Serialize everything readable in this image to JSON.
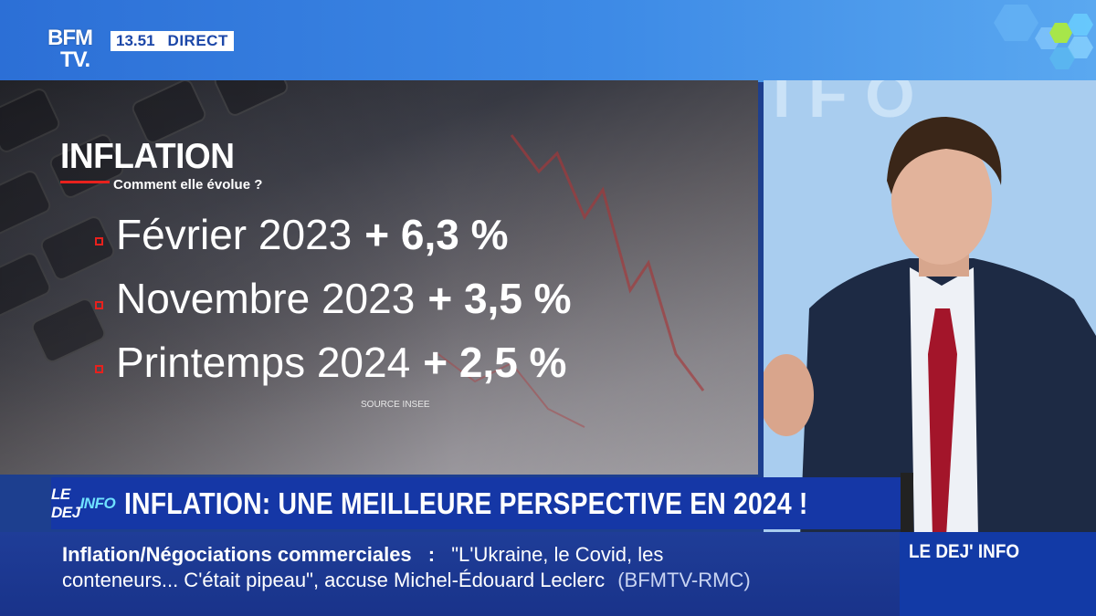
{
  "channel": {
    "logo_line1": "BFM",
    "logo_line2": "TV.",
    "time": "13.51",
    "live_label": "DIRECT"
  },
  "graphic": {
    "title": "INFLATION",
    "subtitle": "Comment elle évolue ?",
    "rows": [
      {
        "period": "Février 2023",
        "value": "+ 6,3 %"
      },
      {
        "period": "Novembre 2023",
        "value": "+ 3,5 %"
      },
      {
        "period": "Printemps 2024",
        "value": "+ 2,5 %"
      }
    ],
    "source": "SOURCE INSEE"
  },
  "headline": {
    "show_logo_a": "LE DEJ",
    "show_logo_b": "INFO",
    "text": "INFLATION: UNE MEILLEURE PERSPECTIVE EN 2024 !"
  },
  "ticker": {
    "topic": "Inflation/Négociations commerciales",
    "separator": ":",
    "line1_text": "\"L'Ukraine, le Covid, les",
    "line2_text": "conteneurs... C'était pipeau\", accuse Michel-Édouard Leclerc",
    "source": "(BFMTV-RMC)",
    "brand": "LE DEJ' INFO"
  },
  "colors": {
    "accent_red": "#e8211d",
    "brand_blue": "#1537a6",
    "top_band": "#3d8ae6"
  }
}
